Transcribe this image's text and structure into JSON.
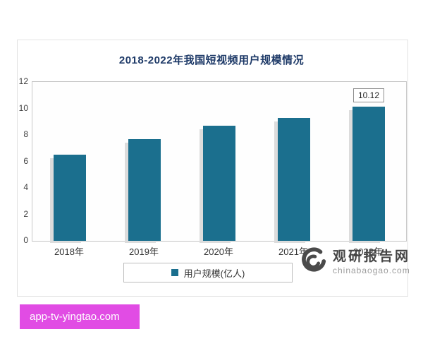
{
  "chart": {
    "title_color": "#1e3a68",
    "bar_color": "#1b6f8e",
    "legend_label": "用户规模(亿人)"
  },
  "chart_data": {
    "type": "bar",
    "title": "2018-2022年我国短视频用户规模情况",
    "categories": [
      "2018年",
      "2019年",
      "2020年",
      "2021年",
      "2022年"
    ],
    "values": [
      6.5,
      7.7,
      8.7,
      9.3,
      10.12
    ],
    "xlabel": "",
    "ylabel": "",
    "ylim": [
      0,
      12
    ],
    "yticks": [
      0,
      2,
      4,
      6,
      8,
      10,
      12
    ],
    "grid": false,
    "legend": [
      "用户规模(亿人)"
    ],
    "legend_position": "bottom",
    "data_labels": {
      "2022年": "10.12"
    }
  },
  "watermark": {
    "name": "观研报告网",
    "domain": "chinabaogao.com"
  },
  "footer": {
    "text": "app-tv-yingtao.com",
    "bg_color": "#e14ce4"
  }
}
